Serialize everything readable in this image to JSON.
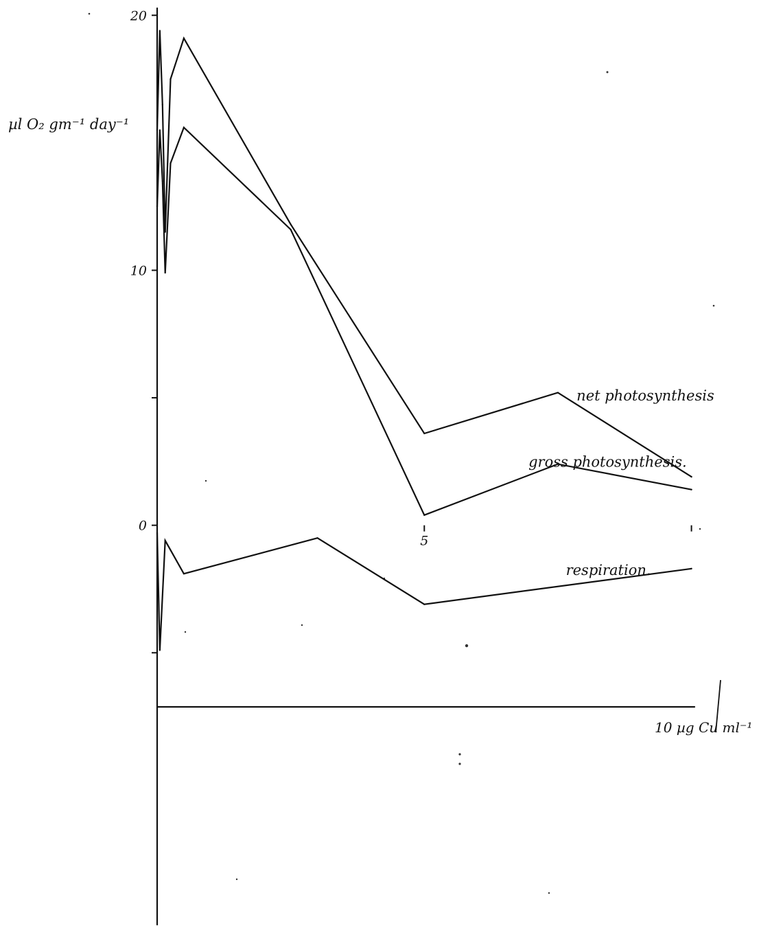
{
  "chart_data": {
    "type": "line",
    "title": "",
    "ylabel": "µl O₂ gm⁻¹ day⁻¹",
    "xlabel": "",
    "x_unit_label": "10 µg Cu ml⁻¹",
    "xlim": [
      0,
      11.2
    ],
    "ylim": [
      -15.5,
      20.6
    ],
    "grid": false,
    "legend": "none (series labelled directly on the plot)",
    "x_ticks": [
      {
        "value": 5,
        "label": "5"
      },
      {
        "value": 10,
        "label": ""
      }
    ],
    "y_ticks": [
      {
        "value": 20,
        "label": "20"
      },
      {
        "value": 10,
        "label": "10"
      },
      {
        "value": 5,
        "label": ""
      },
      {
        "value": 0,
        "label": "0"
      },
      {
        "value": -5,
        "label": ""
      }
    ],
    "series": [
      {
        "name": "net photosynthesis",
        "x": [
          0,
          0.05,
          0.1,
          0.15,
          0.25,
          0.5,
          2.5,
          5,
          7.5,
          10
        ],
        "y": [
          15.5,
          19.4,
          16.5,
          11.5,
          17.5,
          19.1,
          11.8,
          3.6,
          5.2,
          1.9
        ]
      },
      {
        "name": "gross photosynthesis.",
        "x": [
          0,
          0.05,
          0.1,
          0.15,
          0.25,
          0.5,
          2.5,
          5,
          7.5,
          10
        ],
        "y": [
          12.5,
          15.5,
          13.5,
          9.9,
          14.2,
          15.6,
          11.6,
          0.4,
          2.4,
          1.4
        ]
      },
      {
        "name": "respiration.",
        "x": [
          0,
          0.05,
          0.15,
          0.5,
          3,
          5,
          10
        ],
        "y": [
          -0.3,
          -4.9,
          -0.6,
          -1.9,
          -0.5,
          -3.1,
          -1.7
        ]
      }
    ],
    "series_labels": {
      "net photosynthesis": {
        "x": 7.85,
        "y": 4.9
      },
      "gross photosynthesis.": {
        "x": 6.95,
        "y": 2.3
      },
      "respiration.": {
        "x": 7.65,
        "y": -1.95
      }
    }
  }
}
